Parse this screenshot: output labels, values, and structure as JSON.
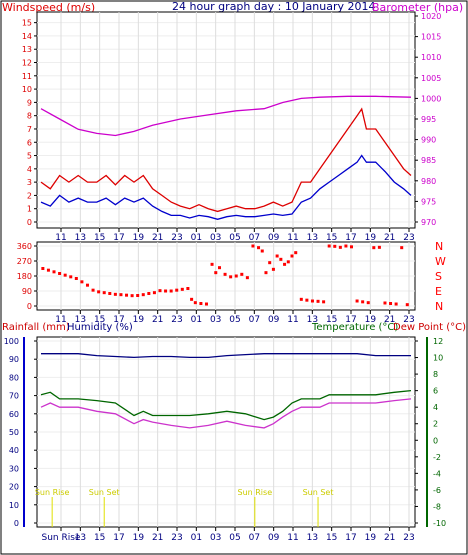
{
  "header": {
    "left_label": "Windspeed (m/s)",
    "center_title": "24 hour graph day : 10 January 2014",
    "right_label": "Barometer (hpa)"
  },
  "colors": {
    "wind": "#dd0000",
    "gust_avg": "#0000cc",
    "barometer": "#cc00cc",
    "winddir": "#ff0000",
    "rainfall": "#cc0000",
    "humidity": "#000080",
    "temperature": "#006600",
    "dewpoint": "#cc33cc",
    "sun": "#e0e000",
    "axis": "#000000"
  },
  "chart_data": [
    {
      "type": "line",
      "name": "wind-barometer",
      "x_ticks": [
        "11",
        "13",
        "15",
        "17",
        "19",
        "21",
        "23",
        "01",
        "03",
        "05",
        "07",
        "09",
        "11",
        "13",
        "15",
        "17",
        "19",
        "21",
        "23"
      ],
      "y_left_ticks": [
        "0",
        "1",
        "2",
        "3",
        "4",
        "5",
        "6",
        "7",
        "8",
        "9",
        "10",
        "11",
        "12",
        "13",
        "14",
        "15"
      ],
      "y_left_lim": [
        0,
        15.5
      ],
      "y_right_ticks": [
        "970",
        "975",
        "980",
        "985",
        "990",
        "995",
        "1000",
        "1005",
        "1010",
        "1015",
        "1020"
      ],
      "y_right_lim": [
        970,
        1020
      ],
      "barometer": [
        [
          0,
          997.5
        ],
        [
          20,
          995
        ],
        [
          40,
          992.5
        ],
        [
          60,
          991.5
        ],
        [
          80,
          991
        ],
        [
          100,
          992
        ],
        [
          120,
          993.5
        ],
        [
          150,
          995
        ],
        [
          180,
          996
        ],
        [
          210,
          997
        ],
        [
          240,
          997.5
        ],
        [
          260,
          999
        ],
        [
          280,
          1000
        ],
        [
          300,
          1000.3
        ],
        [
          330,
          1000.5
        ],
        [
          360,
          1000.5
        ],
        [
          380,
          1000.4
        ],
        [
          398,
          1000.3
        ]
      ],
      "wind_gust": [
        [
          0,
          3
        ],
        [
          10,
          2.5
        ],
        [
          20,
          3.5
        ],
        [
          30,
          3
        ],
        [
          40,
          3.5
        ],
        [
          50,
          3
        ],
        [
          60,
          3
        ],
        [
          70,
          3.5
        ],
        [
          80,
          2.8
        ],
        [
          90,
          3.5
        ],
        [
          100,
          3
        ],
        [
          110,
          3.5
        ],
        [
          120,
          2.5
        ],
        [
          130,
          2
        ],
        [
          140,
          1.5
        ],
        [
          150,
          1.2
        ],
        [
          160,
          1
        ],
        [
          170,
          1.3
        ],
        [
          180,
          1
        ],
        [
          190,
          0.8
        ],
        [
          200,
          1
        ],
        [
          210,
          1.2
        ],
        [
          220,
          1
        ],
        [
          230,
          1
        ],
        [
          240,
          1.2
        ],
        [
          250,
          1.5
        ],
        [
          260,
          1.2
        ],
        [
          270,
          1.5
        ],
        [
          280,
          3
        ],
        [
          290,
          3
        ],
        [
          300,
          4
        ],
        [
          310,
          5
        ],
        [
          320,
          6
        ],
        [
          330,
          7
        ],
        [
          340,
          8
        ],
        [
          345,
          8.5
        ],
        [
          350,
          7
        ],
        [
          360,
          7
        ],
        [
          370,
          6
        ],
        [
          380,
          5
        ],
        [
          390,
          4
        ],
        [
          398,
          3.5
        ]
      ],
      "wind_avg": [
        [
          0,
          1.5
        ],
        [
          10,
          1.2
        ],
        [
          20,
          2
        ],
        [
          30,
          1.5
        ],
        [
          40,
          1.8
        ],
        [
          50,
          1.5
        ],
        [
          60,
          1.5
        ],
        [
          70,
          1.8
        ],
        [
          80,
          1.3
        ],
        [
          90,
          1.8
        ],
        [
          100,
          1.5
        ],
        [
          110,
          1.8
        ],
        [
          120,
          1.2
        ],
        [
          130,
          0.8
        ],
        [
          140,
          0.5
        ],
        [
          150,
          0.5
        ],
        [
          160,
          0.3
        ],
        [
          170,
          0.5
        ],
        [
          180,
          0.4
        ],
        [
          190,
          0.2
        ],
        [
          200,
          0.4
        ],
        [
          210,
          0.5
        ],
        [
          220,
          0.4
        ],
        [
          230,
          0.4
        ],
        [
          240,
          0.5
        ],
        [
          250,
          0.6
        ],
        [
          260,
          0.5
        ],
        [
          270,
          0.6
        ],
        [
          280,
          1.5
        ],
        [
          290,
          1.8
        ],
        [
          300,
          2.5
        ],
        [
          310,
          3
        ],
        [
          320,
          3.5
        ],
        [
          330,
          4
        ],
        [
          340,
          4.5
        ],
        [
          345,
          5
        ],
        [
          350,
          4.5
        ],
        [
          360,
          4.5
        ],
        [
          370,
          3.8
        ],
        [
          380,
          3
        ],
        [
          390,
          2.5
        ],
        [
          398,
          2
        ]
      ],
      "ylabel_left": "Windspeed (m/s)",
      "ylabel_right": "Barometer (hpa)"
    },
    {
      "type": "scatter",
      "name": "wind-direction",
      "x_ticks": [
        "11",
        "13",
        "15",
        "17",
        "19",
        "21",
        "23",
        "01",
        "03",
        "05",
        "07",
        "09",
        "11",
        "13",
        "15",
        "17",
        "19",
        "21",
        "23"
      ],
      "y_ticks": [
        "0",
        "90",
        "180",
        "270",
        "360"
      ],
      "ylim": [
        0,
        360
      ],
      "compass_labels": [
        "N",
        "W",
        "S",
        "E",
        "N"
      ],
      "points": [
        [
          2,
          225
        ],
        [
          8,
          215
        ],
        [
          14,
          205
        ],
        [
          20,
          195
        ],
        [
          26,
          185
        ],
        [
          32,
          175
        ],
        [
          38,
          165
        ],
        [
          44,
          145
        ],
        [
          50,
          125
        ],
        [
          56,
          95
        ],
        [
          62,
          85
        ],
        [
          68,
          80
        ],
        [
          74,
          75
        ],
        [
          80,
          70
        ],
        [
          86,
          68
        ],
        [
          92,
          65
        ],
        [
          98,
          62
        ],
        [
          104,
          63
        ],
        [
          110,
          68
        ],
        [
          116,
          75
        ],
        [
          122,
          80
        ],
        [
          128,
          92
        ],
        [
          134,
          90
        ],
        [
          140,
          90
        ],
        [
          146,
          95
        ],
        [
          152,
          100
        ],
        [
          158,
          105
        ],
        [
          162,
          40
        ],
        [
          166,
          20
        ],
        [
          172,
          15
        ],
        [
          178,
          12
        ],
        [
          184,
          250
        ],
        [
          188,
          200
        ],
        [
          192,
          230
        ],
        [
          198,
          190
        ],
        [
          204,
          175
        ],
        [
          210,
          180
        ],
        [
          216,
          190
        ],
        [
          222,
          170
        ],
        [
          228,
          360
        ],
        [
          234,
          350
        ],
        [
          238,
          330
        ],
        [
          242,
          200
        ],
        [
          246,
          260
        ],
        [
          250,
          220
        ],
        [
          254,
          300
        ],
        [
          258,
          280
        ],
        [
          262,
          250
        ],
        [
          266,
          265
        ],
        [
          270,
          300
        ],
        [
          274,
          320
        ],
        [
          280,
          40
        ],
        [
          286,
          35
        ],
        [
          292,
          30
        ],
        [
          298,
          28
        ],
        [
          304,
          25
        ],
        [
          310,
          360
        ],
        [
          316,
          358
        ],
        [
          322,
          352
        ],
        [
          328,
          360
        ],
        [
          334,
          355
        ],
        [
          340,
          30
        ],
        [
          346,
          25
        ],
        [
          352,
          20
        ],
        [
          358,
          350
        ],
        [
          364,
          352
        ],
        [
          370,
          18
        ],
        [
          376,
          15
        ],
        [
          382,
          12
        ],
        [
          388,
          350
        ],
        [
          394,
          8
        ]
      ]
    },
    {
      "type": "line",
      "name": "rain-humidity-temp-dew",
      "x_ticks": [
        "Sun Rise",
        "13",
        "15",
        "17",
        "19",
        "21",
        "23",
        "01",
        "03",
        "05",
        "07",
        "09",
        "11",
        "13",
        "15",
        "17",
        "19",
        "21",
        "23"
      ],
      "y_left_ticks": [
        "0",
        "10",
        "20",
        "30",
        "40",
        "50",
        "60",
        "70",
        "80",
        "90",
        "100"
      ],
      "y_left_lim": [
        0,
        100
      ],
      "y_right_ticks": [
        "-10",
        "-8",
        "-6",
        "-4",
        "-2",
        "0",
        "2",
        "4",
        "6",
        "8",
        "10",
        "12"
      ],
      "y_right_lim": [
        -10,
        12
      ],
      "humidity": [
        [
          0,
          93
        ],
        [
          40,
          93
        ],
        [
          60,
          92
        ],
        [
          80,
          91.5
        ],
        [
          100,
          91
        ],
        [
          120,
          91.5
        ],
        [
          140,
          91.5
        ],
        [
          160,
          91
        ],
        [
          180,
          91
        ],
        [
          200,
          92
        ],
        [
          220,
          92.5
        ],
        [
          240,
          93
        ],
        [
          260,
          93
        ],
        [
          280,
          93
        ],
        [
          300,
          93
        ],
        [
          320,
          93
        ],
        [
          340,
          93
        ],
        [
          360,
          92
        ],
        [
          380,
          92
        ],
        [
          398,
          92
        ]
      ],
      "temperature": [
        [
          0,
          5.5
        ],
        [
          10,
          5.8
        ],
        [
          20,
          5
        ],
        [
          40,
          5
        ],
        [
          60,
          4.8
        ],
        [
          80,
          4.5
        ],
        [
          100,
          3
        ],
        [
          110,
          3.5
        ],
        [
          120,
          3
        ],
        [
          140,
          3
        ],
        [
          160,
          3
        ],
        [
          180,
          3.2
        ],
        [
          200,
          3.5
        ],
        [
          220,
          3.2
        ],
        [
          240,
          2.5
        ],
        [
          250,
          2.8
        ],
        [
          260,
          3.5
        ],
        [
          270,
          4.5
        ],
        [
          280,
          5
        ],
        [
          300,
          5
        ],
        [
          310,
          5.5
        ],
        [
          320,
          5.5
        ],
        [
          340,
          5.5
        ],
        [
          360,
          5.5
        ],
        [
          380,
          5.8
        ],
        [
          398,
          6
        ]
      ],
      "dewpoint": [
        [
          0,
          4
        ],
        [
          10,
          4.5
        ],
        [
          20,
          4
        ],
        [
          40,
          4
        ],
        [
          60,
          3.5
        ],
        [
          80,
          3.2
        ],
        [
          100,
          2
        ],
        [
          110,
          2.5
        ],
        [
          120,
          2.2
        ],
        [
          140,
          1.8
        ],
        [
          160,
          1.5
        ],
        [
          180,
          1.8
        ],
        [
          200,
          2.3
        ],
        [
          220,
          1.8
        ],
        [
          240,
          1.5
        ],
        [
          250,
          2
        ],
        [
          260,
          2.8
        ],
        [
          270,
          3.5
        ],
        [
          280,
          4
        ],
        [
          300,
          4
        ],
        [
          310,
          4.5
        ],
        [
          320,
          4.5
        ],
        [
          340,
          4.5
        ],
        [
          360,
          4.5
        ],
        [
          380,
          4.8
        ],
        [
          398,
          5
        ]
      ],
      "legend_left": [
        "Rainfall (mm)",
        "Humidity (%)"
      ],
      "legend_right": [
        "Temperature (°C)",
        "Dew Point (°C)"
      ],
      "sun_events": [
        {
          "label": "Sun Rise",
          "x": 12
        },
        {
          "label": "Sun Set",
          "x": 68
        },
        {
          "label": "Sun Rise",
          "x": 230
        },
        {
          "label": "Sun Set",
          "x": 298
        }
      ]
    }
  ]
}
